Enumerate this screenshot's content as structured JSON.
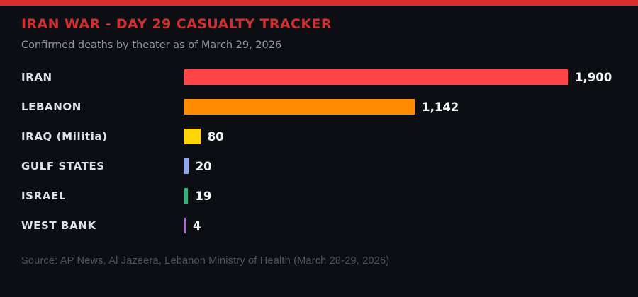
{
  "header": {
    "title": "IRAN WAR - DAY 29 CASUALTY TRACKER",
    "subtitle": "Confirmed deaths by theater as of March 29, 2026"
  },
  "chart_data": {
    "type": "bar",
    "orientation": "horizontal",
    "title": "IRAN WAR - DAY 29 CASUALTY TRACKER",
    "subtitle": "Confirmed deaths by theater as of March 29, 2026",
    "categories": [
      "IRAN",
      "LEBANON",
      "IRAQ (Militia)",
      "GULF STATES",
      "ISRAEL",
      "WEST BANK"
    ],
    "values": [
      1900,
      1142,
      80,
      20,
      19,
      4
    ],
    "display_values": [
      "1,900",
      "1,142",
      "80",
      "20",
      "19",
      "4"
    ],
    "bar_colors": [
      "#ff4545",
      "#ff8c00",
      "#ffd400",
      "#8aa6f5",
      "#33b27e",
      "#b164e6"
    ],
    "xlim": [
      0,
      1900
    ],
    "grid": false,
    "legend": false,
    "value_labels": true
  },
  "footer": {
    "source": "Source: AP News, Al Jazeera, Lebanon Ministry of Health (March 28-29, 2026)"
  },
  "colors": {
    "background": "#0d0e13",
    "accent_strip": "#d92c2c",
    "title": "#d32f2f",
    "subtitle_text": "#8e95a3",
    "label_text": "#dfe0e8",
    "value_text": "#f5f6f8",
    "source_text": "#4e5360"
  }
}
